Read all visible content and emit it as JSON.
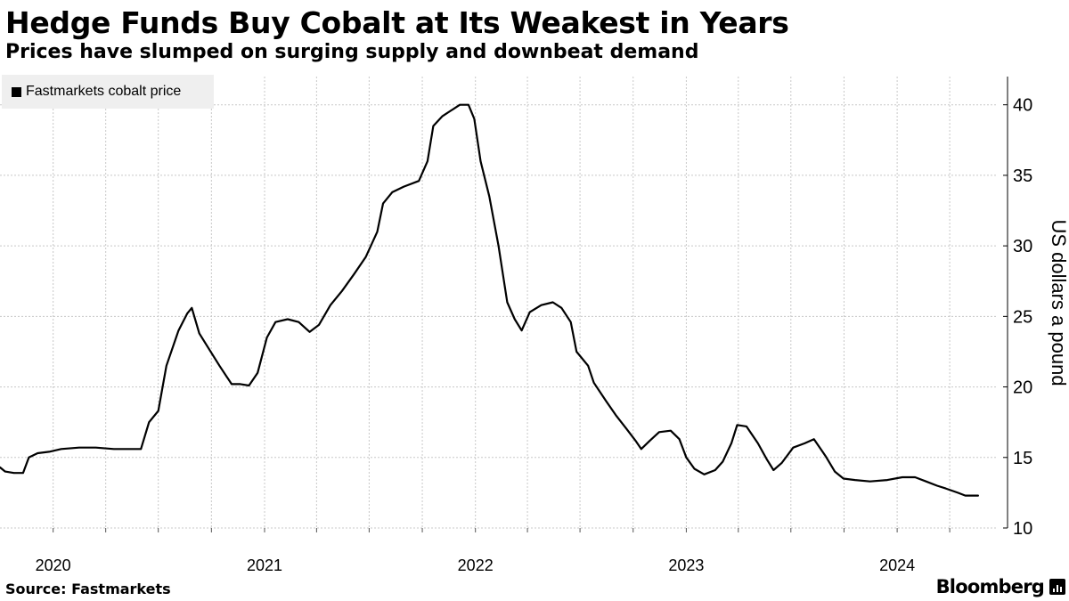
{
  "title": "Hedge Funds Buy Cobalt at Its Weakest in Years",
  "subtitle": "Prices have slumped on surging supply and downbeat demand",
  "source": "Source: Fastmarkets",
  "brand": "Bloomberg",
  "brand_icon": "bloomberg-chart-icon",
  "chart_data": {
    "type": "line",
    "title": "Hedge Funds Buy Cobalt at Its Weakest in Years",
    "subtitle": "Prices have slumped on surging supply and downbeat demand",
    "ylabel": "US dollars a pound",
    "xlabel": "",
    "ylim": [
      10,
      42
    ],
    "yticks": [
      10,
      15,
      20,
      25,
      30,
      35,
      40
    ],
    "x_tick_labels": [
      "2020",
      "2021",
      "2022",
      "2023",
      "2024"
    ],
    "x_tick_positions": [
      "2020-01-01",
      "2021-01-01",
      "2022-01-01",
      "2023-01-01",
      "2024-01-01"
    ],
    "xlim": [
      "2019-10-01",
      "2024-06-20"
    ],
    "grid": true,
    "legend_position": "top-left",
    "line_color": "#000000",
    "series": [
      {
        "name": "Fastmarkets cobalt price",
        "points": [
          [
            "2019-10-01",
            14.3
          ],
          [
            "2019-10-10",
            14.0
          ],
          [
            "2019-10-25",
            13.9
          ],
          [
            "2019-11-10",
            13.9
          ],
          [
            "2019-11-20",
            15.0
          ],
          [
            "2019-12-05",
            15.3
          ],
          [
            "2019-12-25",
            15.4
          ],
          [
            "2020-01-15",
            15.6
          ],
          [
            "2020-02-15",
            15.7
          ],
          [
            "2020-03-15",
            15.7
          ],
          [
            "2020-04-15",
            15.6
          ],
          [
            "2020-05-15",
            15.6
          ],
          [
            "2020-06-01",
            15.6
          ],
          [
            "2020-06-15",
            17.5
          ],
          [
            "2020-07-01",
            18.3
          ],
          [
            "2020-07-15",
            21.5
          ],
          [
            "2020-08-05",
            24.0
          ],
          [
            "2020-08-20",
            25.2
          ],
          [
            "2020-08-28",
            25.6
          ],
          [
            "2020-09-10",
            23.8
          ],
          [
            "2020-09-25",
            22.8
          ],
          [
            "2020-10-15",
            21.5
          ],
          [
            "2020-11-05",
            20.2
          ],
          [
            "2020-11-20",
            20.2
          ],
          [
            "2020-12-05",
            20.1
          ],
          [
            "2020-12-20",
            21.0
          ],
          [
            "2021-01-05",
            23.5
          ],
          [
            "2021-01-20",
            24.6
          ],
          [
            "2021-02-10",
            24.8
          ],
          [
            "2021-03-01",
            24.6
          ],
          [
            "2021-03-20",
            23.9
          ],
          [
            "2021-04-05",
            24.4
          ],
          [
            "2021-04-25",
            25.8
          ],
          [
            "2021-05-15",
            26.8
          ],
          [
            "2021-06-05",
            28.0
          ],
          [
            "2021-06-25",
            29.2
          ],
          [
            "2021-07-15",
            31.0
          ],
          [
            "2021-07-25",
            33.0
          ],
          [
            "2021-08-10",
            33.8
          ],
          [
            "2021-08-30",
            34.2
          ],
          [
            "2021-09-25",
            34.6
          ],
          [
            "2021-10-10",
            36.0
          ],
          [
            "2021-10-20",
            38.5
          ],
          [
            "2021-11-05",
            39.2
          ],
          [
            "2021-11-20",
            39.6
          ],
          [
            "2021-12-05",
            40.0
          ],
          [
            "2021-12-20",
            40.0
          ],
          [
            "2021-12-30",
            39.0
          ],
          [
            "2022-01-10",
            36.0
          ],
          [
            "2022-01-25",
            33.5
          ],
          [
            "2022-02-10",
            30.0
          ],
          [
            "2022-02-25",
            26.0
          ],
          [
            "2022-03-10",
            24.8
          ],
          [
            "2022-03-22",
            24.0
          ],
          [
            "2022-04-05",
            25.3
          ],
          [
            "2022-04-25",
            25.8
          ],
          [
            "2022-05-15",
            26.0
          ],
          [
            "2022-05-30",
            25.6
          ],
          [
            "2022-06-15",
            24.6
          ],
          [
            "2022-06-25",
            22.5
          ],
          [
            "2022-07-15",
            21.5
          ],
          [
            "2022-07-25",
            20.3
          ],
          [
            "2022-08-15",
            19.0
          ],
          [
            "2022-09-01",
            18.0
          ],
          [
            "2022-09-20",
            17.0
          ],
          [
            "2022-10-05",
            16.2
          ],
          [
            "2022-10-15",
            15.6
          ],
          [
            "2022-10-30",
            16.2
          ],
          [
            "2022-11-15",
            16.8
          ],
          [
            "2022-12-05",
            16.9
          ],
          [
            "2022-12-20",
            16.3
          ],
          [
            "2023-01-01",
            15.0
          ],
          [
            "2023-01-15",
            14.2
          ],
          [
            "2023-02-01",
            13.8
          ],
          [
            "2023-02-20",
            14.1
          ],
          [
            "2023-03-05",
            14.7
          ],
          [
            "2023-03-20",
            16.0
          ],
          [
            "2023-03-30",
            17.3
          ],
          [
            "2023-04-15",
            17.2
          ],
          [
            "2023-05-05",
            16.0
          ],
          [
            "2023-05-20",
            14.9
          ],
          [
            "2023-06-01",
            14.1
          ],
          [
            "2023-06-15",
            14.6
          ],
          [
            "2023-07-05",
            15.7
          ],
          [
            "2023-07-25",
            16.0
          ],
          [
            "2023-08-10",
            16.3
          ],
          [
            "2023-08-30",
            15.1
          ],
          [
            "2023-09-15",
            14.0
          ],
          [
            "2023-09-30",
            13.5
          ],
          [
            "2023-10-20",
            13.4
          ],
          [
            "2023-11-15",
            13.3
          ],
          [
            "2023-12-15",
            13.4
          ],
          [
            "2024-01-10",
            13.6
          ],
          [
            "2024-02-01",
            13.6
          ],
          [
            "2024-02-20",
            13.3
          ],
          [
            "2024-03-10",
            13.0
          ],
          [
            "2024-03-25",
            12.8
          ],
          [
            "2024-04-15",
            12.5
          ],
          [
            "2024-04-28",
            12.3
          ],
          [
            "2024-05-20",
            12.3
          ]
        ]
      }
    ]
  }
}
